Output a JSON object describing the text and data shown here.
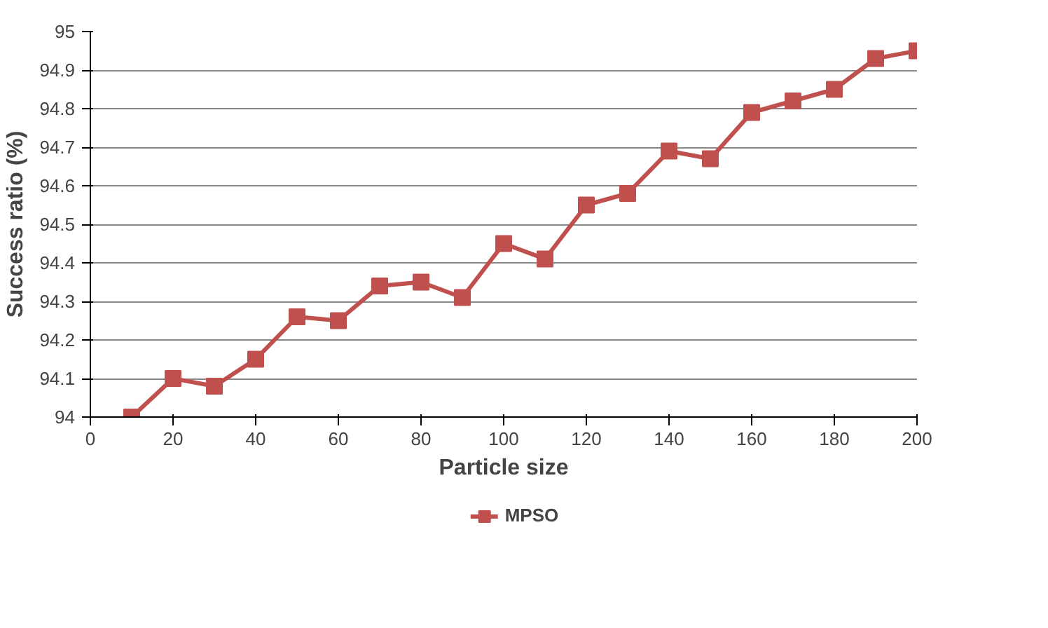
{
  "chart_data": {
    "type": "line",
    "xlabel": "Particle size",
    "ylabel": "Success ratio (%)",
    "xlim": [
      0,
      200
    ],
    "xticks": [
      0,
      20,
      40,
      60,
      80,
      100,
      120,
      140,
      160,
      180,
      200
    ],
    "ylim": [
      94,
      95
    ],
    "yticks": [
      94,
      94.1,
      94.2,
      94.3,
      94.4,
      94.5,
      94.6,
      94.7,
      94.8,
      94.9,
      95
    ],
    "grid": "y",
    "legend": "bottom",
    "marker": "square",
    "line_style": "solid",
    "x": [
      10,
      20,
      30,
      40,
      50,
      60,
      70,
      80,
      90,
      100,
      110,
      120,
      130,
      140,
      150,
      160,
      170,
      180,
      190,
      200
    ],
    "series": [
      {
        "name": "MPSO",
        "color": "#c0504d",
        "values": [
          94.0,
          94.1,
          94.08,
          94.15,
          94.26,
          94.25,
          94.34,
          94.35,
          94.31,
          94.45,
          94.41,
          94.55,
          94.58,
          94.69,
          94.67,
          94.79,
          94.82,
          94.85,
          94.93,
          94.95
        ]
      }
    ]
  }
}
